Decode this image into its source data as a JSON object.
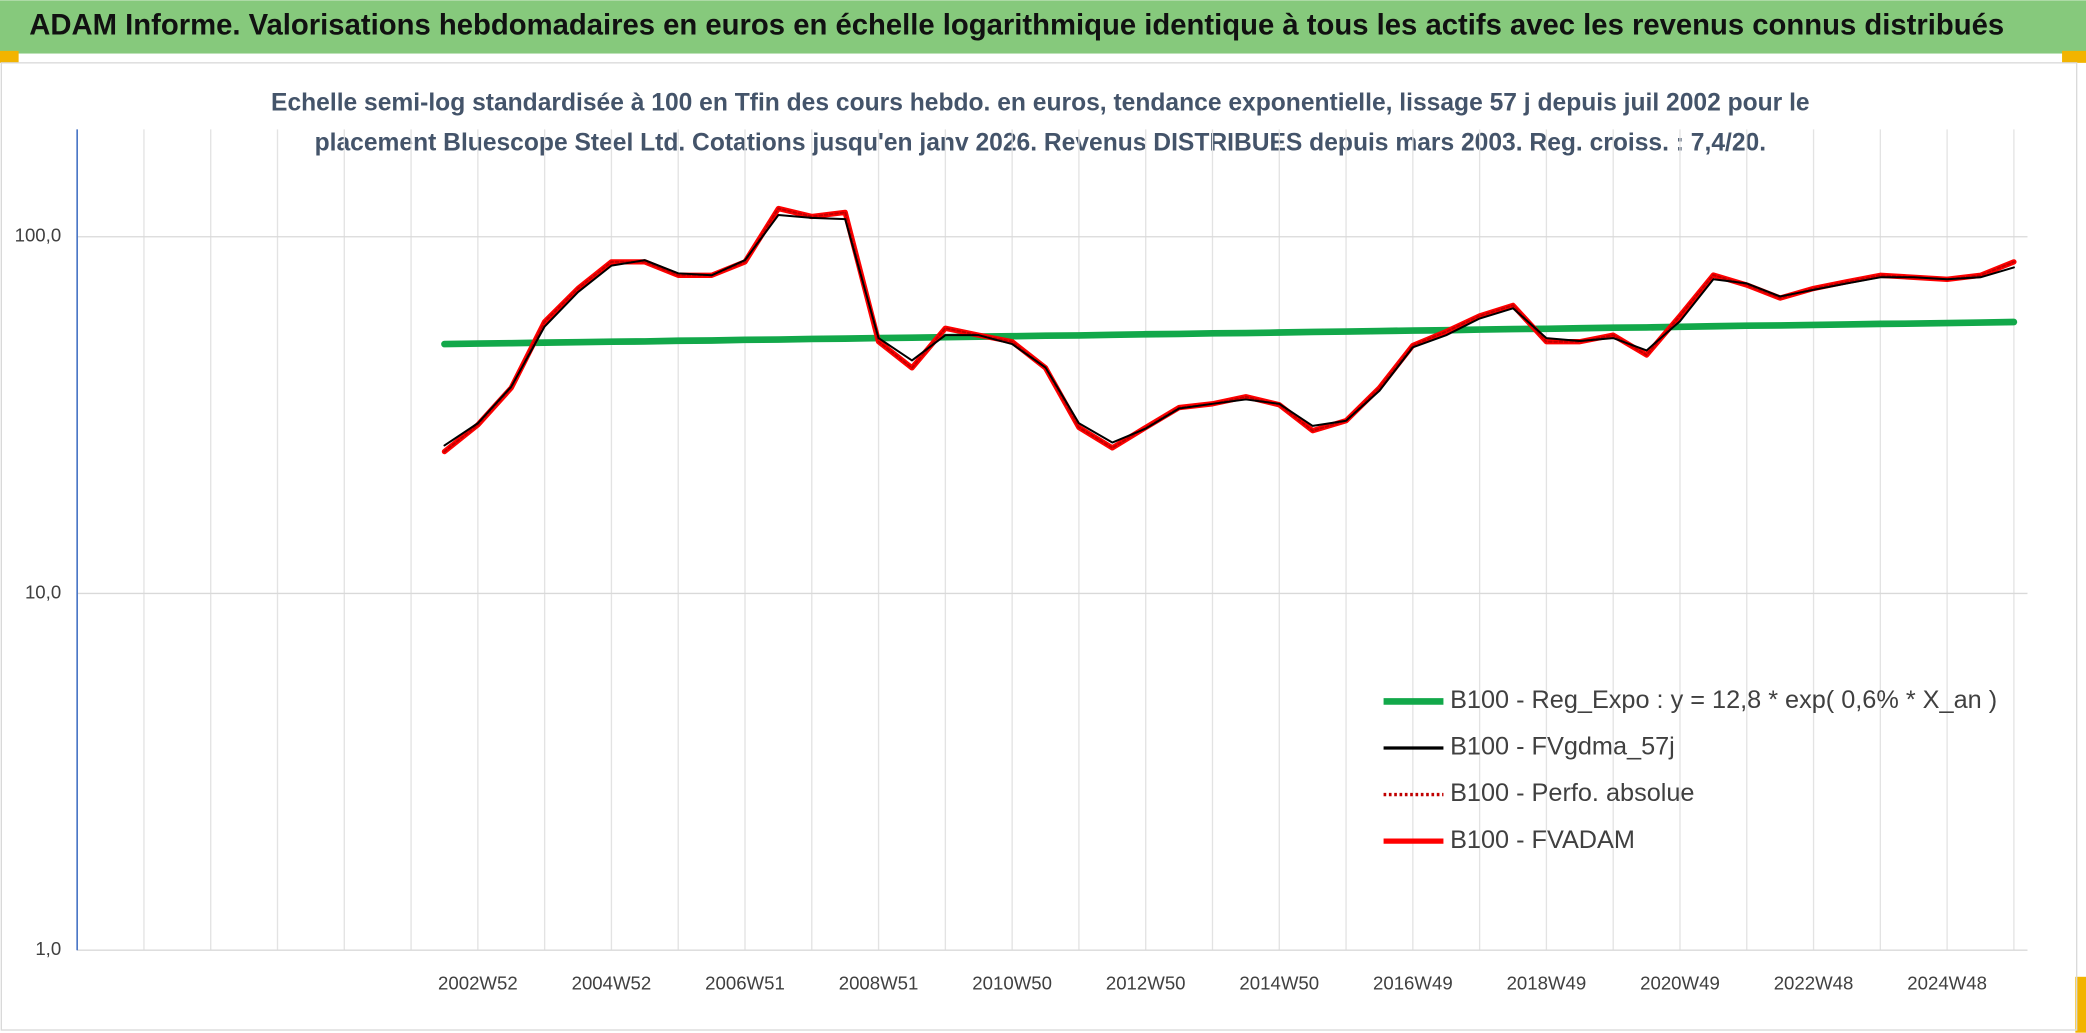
{
  "header": {
    "title": "ADAM Informe. Valorisations hebdomadaires en euros en échelle logarithmique identique à tous les actifs avec les revenus connus distribués"
  },
  "chart_data": {
    "type": "line",
    "title": [
      "Echelle semi-log standardisée à 100 en Tfin des cours hebdo. en euros, tendance exponentielle, lissage 57 j depuis juil 2002 pour le",
      "placement Bluescope Steel Ltd. Cotations jusqu'en janv 2026. Revenus DISTRIBUES depuis mars 2003. Reg. croiss. : 7,4/20."
    ],
    "log": true,
    "grid": true,
    "ylim": [
      1,
      200
    ],
    "yticks": [
      {
        "value": 1,
        "label": "1,0"
      },
      {
        "value": 10,
        "label": "10,0"
      },
      {
        "value": 100,
        "label": "100,0"
      }
    ],
    "categories": [
      null,
      null,
      null,
      null,
      null,
      null,
      null,
      null,
      null,
      null,
      null,
      null,
      "2002W52",
      null,
      null,
      null,
      "2004W52",
      null,
      null,
      null,
      "2006W51",
      null,
      null,
      null,
      "2008W51",
      null,
      null,
      null,
      "2010W50",
      null,
      null,
      null,
      "2012W50",
      null,
      null,
      null,
      "2014W50",
      null,
      null,
      null,
      "2016W49",
      null,
      null,
      null,
      "2018W49",
      null,
      null,
      null,
      "2020W49",
      null,
      null,
      null,
      "2022W48",
      null,
      null,
      null,
      "2024W48",
      null,
      null
    ],
    "series": [
      {
        "name": "B100 - Reg_Expo : y = 12,8 * exp( 0,6% *  X_an )",
        "color": "#12a84a",
        "values": [
          null,
          null,
          null,
          null,
          null,
          null,
          null,
          null,
          null,
          null,
          null,
          50.0,
          50.2,
          50.3,
          50.5,
          50.6,
          50.8,
          50.9,
          51.1,
          51.2,
          51.4,
          51.5,
          51.7,
          51.8,
          52.0,
          52.1,
          52.3,
          52.5,
          52.6,
          52.8,
          52.9,
          53.1,
          53.3,
          53.4,
          53.6,
          53.7,
          53.9,
          54.1,
          54.2,
          54.4,
          54.6,
          54.7,
          54.9,
          55.1,
          55.2,
          55.4,
          55.6,
          55.7,
          55.9,
          56.1,
          56.3,
          56.4,
          56.6,
          56.8,
          57.0,
          57.1,
          57.3,
          57.5,
          57.7
        ]
      },
      {
        "name": "B100 - FVgdma_57j",
        "color": "#000000",
        "values": [
          null,
          null,
          null,
          null,
          null,
          null,
          null,
          null,
          null,
          null,
          null,
          26,
          30,
          38,
          56,
          70,
          83,
          86,
          79,
          78,
          86,
          115,
          113,
          112,
          52,
          45,
          53,
          53,
          50,
          43,
          30,
          26.5,
          29,
          33,
          34,
          35,
          34,
          29.5,
          30.5,
          37,
          49,
          53,
          59,
          63,
          52,
          51,
          52,
          48,
          58,
          76,
          74,
          68,
          71,
          74,
          77,
          77,
          76,
          77,
          82
        ]
      },
      {
        "name": "B100 - Perfo. absolue",
        "color": "#c00000",
        "dotted": true,
        "values": [
          null,
          null,
          null,
          null,
          null,
          null,
          null,
          null,
          null,
          null,
          null,
          25,
          29.7,
          37.7,
          57.8,
          71.6,
          85,
          85,
          78,
          78,
          85,
          120,
          114,
          117,
          50.8,
          42.9,
          55.4,
          53,
          50.8,
          42.9,
          29.2,
          25.6,
          29.2,
          33.2,
          34,
          35.6,
          33.8,
          28.6,
          30.5,
          37.7,
          49.6,
          54.2,
          60,
          64.2,
          50.8,
          50.8,
          53,
          46.6,
          60,
          78.1,
          73.2,
          67.3,
          71.6,
          74.8,
          78,
          77,
          76,
          78,
          85
        ]
      },
      {
        "name": "B100 - FVADAM",
        "color": "#ff0000",
        "values": [
          null,
          null,
          null,
          null,
          null,
          null,
          null,
          null,
          null,
          null,
          null,
          25,
          29.7,
          37.7,
          57.8,
          71.6,
          85,
          85,
          78,
          78,
          85,
          120,
          114,
          117,
          50.8,
          42.9,
          55.4,
          53,
          50.8,
          42.9,
          29.2,
          25.6,
          29.2,
          33.2,
          34,
          35.6,
          33.8,
          28.6,
          30.5,
          37.7,
          49.6,
          54.2,
          60,
          64.2,
          50.8,
          50.8,
          53,
          46.6,
          60,
          78.1,
          73.2,
          67.3,
          71.6,
          74.8,
          78,
          77,
          76,
          78,
          85
        ]
      }
    ]
  }
}
